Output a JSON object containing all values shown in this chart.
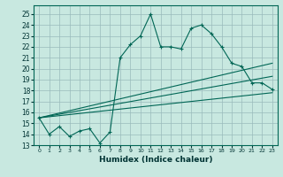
{
  "xlabel": "Humidex (Indice chaleur)",
  "x_ticks": [
    0,
    1,
    2,
    3,
    4,
    5,
    6,
    7,
    8,
    9,
    10,
    11,
    12,
    13,
    14,
    15,
    16,
    17,
    18,
    19,
    20,
    21,
    22,
    23
  ],
  "y_ticks": [
    13,
    14,
    15,
    16,
    17,
    18,
    19,
    20,
    21,
    22,
    23,
    24,
    25
  ],
  "xlim": [
    -0.5,
    23.5
  ],
  "ylim": [
    13,
    25.8
  ],
  "bg_color": "#c8e8e0",
  "grid_color": "#99bbbb",
  "line_color": "#006655",
  "main_line_x": [
    0,
    1,
    2,
    3,
    4,
    5,
    6,
    7,
    8,
    9,
    10,
    11,
    12,
    13,
    14,
    15,
    16,
    17,
    18,
    19,
    20,
    21,
    22,
    23
  ],
  "main_line_y": [
    15.5,
    14.0,
    14.7,
    13.8,
    14.3,
    14.5,
    13.2,
    14.2,
    21.0,
    22.2,
    23.0,
    25.0,
    22.0,
    22.0,
    21.8,
    23.7,
    24.0,
    23.2,
    22.0,
    20.5,
    20.2,
    18.7,
    18.7,
    18.1
  ],
  "trend1_x": [
    0,
    23
  ],
  "trend1_y": [
    15.5,
    17.8
  ],
  "trend2_x": [
    0,
    23
  ],
  "trend2_y": [
    15.5,
    19.3
  ],
  "trend3_x": [
    0,
    23
  ],
  "trend3_y": [
    15.5,
    20.5
  ]
}
